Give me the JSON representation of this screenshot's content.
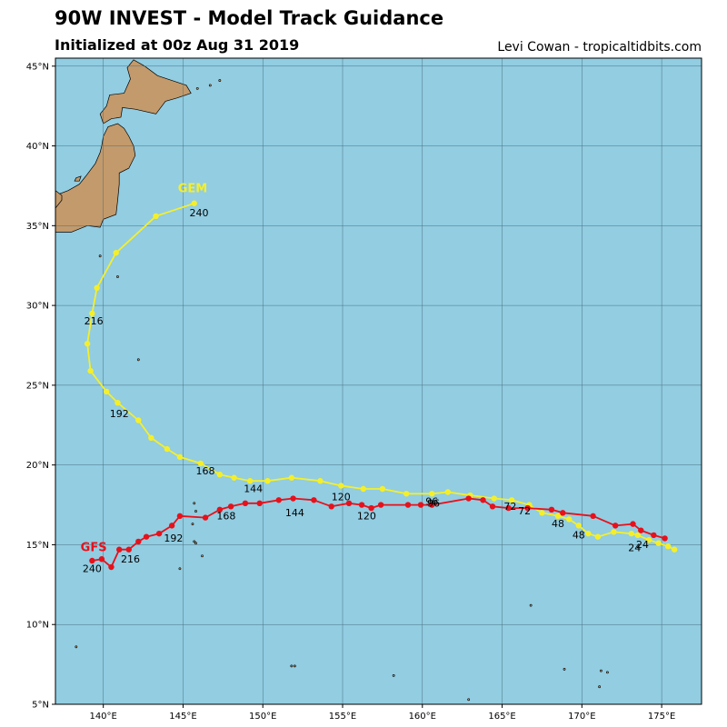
{
  "header": {
    "title": "90W INVEST - Model Track Guidance",
    "subtitle": "Initialized at 00z Aug 31 2019",
    "credit": "Levi Cowan - tropicaltidbits.com"
  },
  "colors": {
    "ocean": "#92cde2",
    "land": "#c39a6b",
    "grid": "#4a6f7e",
    "gem": "#f5ef2a",
    "gfs": "#e8101a"
  },
  "chart_data": {
    "type": "map-track",
    "xlim": [
      137,
      177.5
    ],
    "ylim": [
      5,
      45.5
    ],
    "lon_ticks": [
      {
        "value": 140,
        "label": "140°E"
      },
      {
        "value": 145,
        "label": "145°E"
      },
      {
        "value": 150,
        "label": "150°E"
      },
      {
        "value": 155,
        "label": "155°E"
      },
      {
        "value": 160,
        "label": "160°E"
      },
      {
        "value": 165,
        "label": "165°E"
      },
      {
        "value": 170,
        "label": "170°E"
      },
      {
        "value": 175,
        "label": "175°E"
      }
    ],
    "lat_ticks": [
      {
        "value": 5,
        "label": "5°N"
      },
      {
        "value": 10,
        "label": "10°N"
      },
      {
        "value": 15,
        "label": "15°N"
      },
      {
        "value": 20,
        "label": "20°N"
      },
      {
        "value": 25,
        "label": "25°N"
      },
      {
        "value": 30,
        "label": "30°N"
      },
      {
        "value": 35,
        "label": "35°N"
      },
      {
        "value": 40,
        "label": "40°N"
      },
      {
        "value": 45,
        "label": "45°N"
      }
    ],
    "grid": true,
    "tracks": [
      {
        "name": "GEM",
        "color": "#f5ef2a",
        "points": [
          [
            175.8,
            14.7
          ],
          [
            175.4,
            14.9
          ],
          [
            174.8,
            15.1
          ],
          [
            174.2,
            15.3
          ],
          [
            173.5,
            15.6
          ],
          [
            173.1,
            15.7
          ],
          [
            172.0,
            15.8
          ],
          [
            171.0,
            15.5
          ],
          [
            170.4,
            15.7
          ],
          [
            169.8,
            16.2
          ],
          [
            169.2,
            16.6
          ],
          [
            168.5,
            16.8
          ],
          [
            167.5,
            17.0
          ],
          [
            166.7,
            17.5
          ],
          [
            165.6,
            17.8
          ],
          [
            164.5,
            17.9
          ],
          [
            163.0,
            18.1
          ],
          [
            161.6,
            18.3
          ],
          [
            160.6,
            18.2
          ],
          [
            159.0,
            18.2
          ],
          [
            157.5,
            18.5
          ],
          [
            156.3,
            18.5
          ],
          [
            154.9,
            18.7
          ],
          [
            153.6,
            19.0
          ],
          [
            151.8,
            19.2
          ],
          [
            150.3,
            19.0
          ],
          [
            149.2,
            19.0
          ],
          [
            148.2,
            19.2
          ],
          [
            147.3,
            19.4
          ],
          [
            146.1,
            20.1
          ],
          [
            144.8,
            20.5
          ],
          [
            144.0,
            21.0
          ],
          [
            143.0,
            21.7
          ],
          [
            142.2,
            22.8
          ],
          [
            140.9,
            23.9
          ],
          [
            140.2,
            24.6
          ],
          [
            139.2,
            25.9
          ],
          [
            139.0,
            27.6
          ],
          [
            139.3,
            29.5
          ],
          [
            139.6,
            31.1
          ],
          [
            140.8,
            33.3
          ],
          [
            143.3,
            35.6
          ],
          [
            145.7,
            36.4
          ]
        ],
        "label": {
          "lon": 145.6,
          "lat": 37.1,
          "text": "GEM"
        },
        "hour_labels": [
          {
            "lon": 173.3,
            "lat": 14.6,
            "text": "24"
          },
          {
            "lon": 169.8,
            "lat": 15.4,
            "text": "48"
          },
          {
            "lon": 165.5,
            "lat": 17.2,
            "text": "72"
          },
          {
            "lon": 160.6,
            "lat": 17.5,
            "text": "96"
          },
          {
            "lon": 154.9,
            "lat": 17.8,
            "text": "120"
          },
          {
            "lon": 149.4,
            "lat": 18.3,
            "text": "144"
          },
          {
            "lon": 146.4,
            "lat": 19.4,
            "text": "168"
          },
          {
            "lon": 141.0,
            "lat": 23.0,
            "text": "192"
          },
          {
            "lon": 139.4,
            "lat": 28.8,
            "text": "216"
          },
          {
            "lon": 146.0,
            "lat": 35.6,
            "text": "240"
          }
        ]
      },
      {
        "name": "GFS",
        "color": "#e8101a",
        "points": [
          [
            175.2,
            15.4
          ],
          [
            174.5,
            15.6
          ],
          [
            173.7,
            15.9
          ],
          [
            173.2,
            16.3
          ],
          [
            172.1,
            16.2
          ],
          [
            170.7,
            16.8
          ],
          [
            168.8,
            17.0
          ],
          [
            168.1,
            17.2
          ],
          [
            166.6,
            17.3
          ],
          [
            165.4,
            17.3
          ],
          [
            164.4,
            17.4
          ],
          [
            163.8,
            17.8
          ],
          [
            162.9,
            17.9
          ],
          [
            160.6,
            17.5
          ],
          [
            159.9,
            17.5
          ],
          [
            159.1,
            17.5
          ],
          [
            157.4,
            17.5
          ],
          [
            156.8,
            17.3
          ],
          [
            156.2,
            17.5
          ],
          [
            155.4,
            17.6
          ],
          [
            154.3,
            17.4
          ],
          [
            153.2,
            17.8
          ],
          [
            151.9,
            17.9
          ],
          [
            151.0,
            17.8
          ],
          [
            149.8,
            17.6
          ],
          [
            148.9,
            17.6
          ],
          [
            148.0,
            17.4
          ],
          [
            147.3,
            17.2
          ],
          [
            146.4,
            16.7
          ],
          [
            144.8,
            16.8
          ],
          [
            144.3,
            16.2
          ],
          [
            143.5,
            15.7
          ],
          [
            142.7,
            15.5
          ],
          [
            142.2,
            15.2
          ],
          [
            141.6,
            14.7
          ],
          [
            141.0,
            14.7
          ],
          [
            140.5,
            13.6
          ],
          [
            139.9,
            14.1
          ],
          [
            139.3,
            14.0
          ]
        ],
        "label": {
          "lon": 139.4,
          "lat": 14.6,
          "text": "GFS"
        },
        "hour_labels": [
          {
            "lon": 173.8,
            "lat": 14.8,
            "text": "24"
          },
          {
            "lon": 168.5,
            "lat": 16.1,
            "text": "48"
          },
          {
            "lon": 166.4,
            "lat": 16.9,
            "text": "72"
          },
          {
            "lon": 160.7,
            "lat": 17.4,
            "text": "96"
          },
          {
            "lon": 156.5,
            "lat": 16.6,
            "text": "120"
          },
          {
            "lon": 152.0,
            "lat": 16.8,
            "text": "144"
          },
          {
            "lon": 147.7,
            "lat": 16.6,
            "text": "168"
          },
          {
            "lon": 144.4,
            "lat": 15.2,
            "text": "192"
          },
          {
            "lon": 141.7,
            "lat": 13.9,
            "text": "216"
          },
          {
            "lon": 139.3,
            "lat": 13.3,
            "text": "240"
          }
        ]
      }
    ],
    "land": {
      "japan": [
        [
          [
            137.0,
            34.6
          ],
          [
            138.0,
            34.6
          ],
          [
            139.0,
            35.0
          ],
          [
            139.8,
            34.9
          ],
          [
            140.0,
            35.4
          ],
          [
            140.8,
            35.7
          ],
          [
            140.9,
            36.6
          ],
          [
            141.0,
            37.6
          ],
          [
            141.0,
            38.3
          ],
          [
            141.6,
            38.6
          ],
          [
            142.0,
            39.4
          ],
          [
            141.9,
            40.0
          ],
          [
            141.6,
            40.6
          ],
          [
            141.3,
            41.1
          ],
          [
            140.9,
            41.4
          ],
          [
            140.3,
            41.2
          ],
          [
            140.0,
            40.6
          ],
          [
            139.9,
            40.0
          ],
          [
            139.8,
            39.6
          ],
          [
            139.5,
            38.9
          ],
          [
            138.9,
            38.1
          ],
          [
            138.5,
            37.6
          ],
          [
            137.8,
            37.2
          ],
          [
            137.0,
            36.9
          ]
        ],
        [
          [
            140.0,
            41.4
          ],
          [
            140.5,
            41.7
          ],
          [
            141.1,
            41.8
          ],
          [
            141.2,
            42.4
          ],
          [
            142.0,
            42.3
          ],
          [
            143.3,
            42.0
          ],
          [
            143.9,
            42.8
          ],
          [
            144.6,
            43.0
          ],
          [
            145.5,
            43.3
          ],
          [
            145.2,
            43.8
          ],
          [
            144.3,
            44.1
          ],
          [
            143.4,
            44.4
          ],
          [
            142.6,
            45.0
          ],
          [
            141.9,
            45.4
          ],
          [
            141.5,
            44.9
          ],
          [
            141.7,
            44.2
          ],
          [
            141.3,
            43.3
          ],
          [
            140.4,
            43.2
          ],
          [
            140.2,
            42.5
          ],
          [
            139.8,
            42.0
          ]
        ],
        [
          [
            137.0,
            36.1
          ],
          [
            137.4,
            36.6
          ],
          [
            137.4,
            36.9
          ],
          [
            137.0,
            37.2
          ]
        ],
        [
          [
            138.3,
            38.0
          ],
          [
            138.6,
            38.1
          ],
          [
            138.5,
            37.8
          ],
          [
            138.2,
            37.8
          ]
        ]
      ],
      "islets": [
        [
          144.8,
          13.5
        ],
        [
          145.7,
          15.2
        ],
        [
          145.8,
          15.1
        ],
        [
          145.6,
          16.3
        ],
        [
          145.8,
          17.1
        ],
        [
          145.7,
          17.6
        ],
        [
          142.2,
          26.6
        ],
        [
          140.9,
          31.8
        ],
        [
          139.8,
          33.1
        ],
        [
          145.9,
          43.6
        ],
        [
          146.7,
          43.8
        ],
        [
          147.3,
          44.1
        ],
        [
          138.3,
          8.6
        ],
        [
          146.2,
          14.3
        ],
        [
          151.8,
          7.4
        ],
        [
          152.0,
          7.4
        ],
        [
          158.2,
          6.8
        ],
        [
          162.9,
          5.3
        ],
        [
          166.8,
          11.2
        ],
        [
          168.9,
          7.2
        ],
        [
          171.2,
          7.1
        ],
        [
          171.6,
          7.0
        ],
        [
          171.1,
          6.1
        ]
      ]
    }
  }
}
